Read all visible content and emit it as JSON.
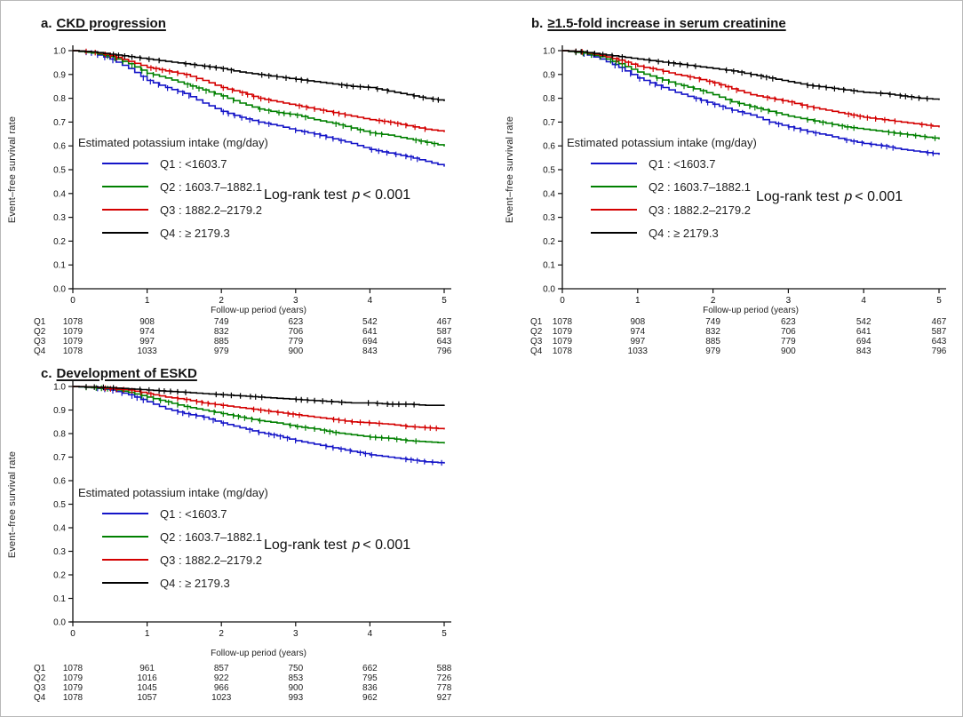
{
  "chart_data": [
    {
      "type": "line",
      "panel_label": "a.",
      "title": "CKD progression",
      "ylabel": "Event–free survival rate",
      "xlabel": "Follow-up period (years)",
      "xlim": [
        0,
        5
      ],
      "ylim": [
        0.0,
        1.0
      ],
      "x_ticks": [
        "0",
        "1",
        "2",
        "3",
        "4",
        "5"
      ],
      "y_ticks": [
        "1.0",
        "0.9",
        "0.8",
        "0.7",
        "0.6",
        "0.5",
        "0.4",
        "0.3",
        "0.2",
        "0.1",
        "0.0"
      ],
      "grid": false,
      "legend_title": "Estimated potassium intake (mg/day)",
      "logrank": {
        "prefix": "Log-rank test",
        "p_symbol": "p",
        "comparison": "< 0.001"
      },
      "x": [
        0,
        0.25,
        0.5,
        0.75,
        1,
        1.25,
        1.5,
        1.75,
        2,
        2.25,
        2.5,
        2.75,
        3,
        3.25,
        3.5,
        3.75,
        4,
        4.25,
        4.5,
        4.75,
        5
      ],
      "series": [
        {
          "name": "Q1",
          "label": "<1603.7",
          "color": "#1515c8",
          "values": [
            1.0,
            0.99,
            0.965,
            0.925,
            0.875,
            0.845,
            0.82,
            0.78,
            0.745,
            0.72,
            0.7,
            0.685,
            0.665,
            0.65,
            0.63,
            0.61,
            0.585,
            0.57,
            0.555,
            0.535,
            0.515
          ]
        },
        {
          "name": "Q2",
          "label": "1603.7–1882.1",
          "color": "#008000",
          "values": [
            1.0,
            0.99,
            0.975,
            0.945,
            0.905,
            0.885,
            0.86,
            0.835,
            0.81,
            0.78,
            0.755,
            0.74,
            0.73,
            0.71,
            0.695,
            0.675,
            0.655,
            0.645,
            0.63,
            0.615,
            0.6
          ]
        },
        {
          "name": "Q3",
          "label": "1882.2–2179.2",
          "color": "#d40000",
          "values": [
            1.0,
            0.995,
            0.98,
            0.955,
            0.93,
            0.915,
            0.9,
            0.875,
            0.845,
            0.825,
            0.8,
            0.785,
            0.77,
            0.755,
            0.74,
            0.725,
            0.71,
            0.7,
            0.685,
            0.67,
            0.66
          ]
        },
        {
          "name": "Q4",
          "label": "≥ 2179.3",
          "color": "#000000",
          "values": [
            1.0,
            0.995,
            0.985,
            0.975,
            0.965,
            0.955,
            0.945,
            0.935,
            0.925,
            0.91,
            0.9,
            0.89,
            0.88,
            0.87,
            0.86,
            0.85,
            0.845,
            0.83,
            0.815,
            0.8,
            0.79
          ]
        }
      ],
      "number_at_risk": {
        "columns": [
          0,
          1,
          2,
          3,
          4,
          5
        ],
        "rows": [
          {
            "name": "Q1",
            "counts": [
              1078,
              908,
              749,
              623,
              542,
              467
            ]
          },
          {
            "name": "Q2",
            "counts": [
              1079,
              974,
              832,
              706,
              641,
              587
            ]
          },
          {
            "name": "Q3",
            "counts": [
              1079,
              997,
              885,
              779,
              694,
              643
            ]
          },
          {
            "name": "Q4",
            "counts": [
              1078,
              1033,
              979,
              900,
              843,
              796
            ]
          }
        ]
      }
    },
    {
      "type": "line",
      "panel_label": "b.",
      "title": "≥1.5-fold increase in serum creatinine",
      "ylabel": "Event–free survival rate",
      "xlabel": "Follow-up period (years)",
      "xlim": [
        0,
        5
      ],
      "ylim": [
        0.0,
        1.0
      ],
      "x_ticks": [
        "0",
        "1",
        "2",
        "3",
        "4",
        "5"
      ],
      "y_ticks": [
        "1.0",
        "0.9",
        "0.8",
        "0.7",
        "0.6",
        "0.5",
        "0.4",
        "0.3",
        "0.2",
        "0.1",
        "0.0"
      ],
      "grid": false,
      "legend_title": "Estimated potassium intake (mg/day)",
      "logrank": {
        "prefix": "Log-rank test",
        "p_symbol": "p",
        "comparison": "< 0.001"
      },
      "x": [
        0,
        0.25,
        0.5,
        0.75,
        1,
        1.25,
        1.5,
        1.75,
        2,
        2.25,
        2.5,
        2.75,
        3,
        3.25,
        3.5,
        3.75,
        4,
        4.25,
        4.5,
        4.75,
        5
      ],
      "series": [
        {
          "name": "Q1",
          "label": "<1603.7",
          "color": "#1515c8",
          "values": [
            1.0,
            0.99,
            0.965,
            0.93,
            0.885,
            0.855,
            0.825,
            0.8,
            0.775,
            0.75,
            0.73,
            0.7,
            0.68,
            0.66,
            0.645,
            0.625,
            0.61,
            0.6,
            0.585,
            0.575,
            0.565
          ]
        },
        {
          "name": "Q2",
          "label": "1603.7–1882.1",
          "color": "#008000",
          "values": [
            1.0,
            0.99,
            0.975,
            0.945,
            0.91,
            0.885,
            0.86,
            0.84,
            0.815,
            0.785,
            0.765,
            0.745,
            0.725,
            0.71,
            0.695,
            0.68,
            0.67,
            0.66,
            0.65,
            0.64,
            0.63
          ]
        },
        {
          "name": "Q3",
          "label": "1882.2–2179.2",
          "color": "#d40000",
          "values": [
            1.0,
            0.995,
            0.98,
            0.96,
            0.935,
            0.92,
            0.9,
            0.885,
            0.865,
            0.84,
            0.815,
            0.8,
            0.785,
            0.765,
            0.75,
            0.735,
            0.72,
            0.71,
            0.7,
            0.69,
            0.68
          ]
        },
        {
          "name": "Q4",
          "label": "≥ 2179.3",
          "color": "#000000",
          "values": [
            1.0,
            0.995,
            0.985,
            0.975,
            0.965,
            0.955,
            0.945,
            0.935,
            0.925,
            0.915,
            0.9,
            0.885,
            0.87,
            0.855,
            0.845,
            0.835,
            0.825,
            0.82,
            0.81,
            0.8,
            0.795
          ]
        }
      ],
      "number_at_risk": {
        "columns": [
          0,
          1,
          2,
          3,
          4,
          5
        ],
        "rows": [
          {
            "name": "Q1",
            "counts": [
              1078,
              908,
              749,
              623,
              542,
              467
            ]
          },
          {
            "name": "Q2",
            "counts": [
              1079,
              974,
              832,
              706,
              641,
              587
            ]
          },
          {
            "name": "Q3",
            "counts": [
              1079,
              997,
              885,
              779,
              694,
              643
            ]
          },
          {
            "name": "Q4",
            "counts": [
              1078,
              1033,
              979,
              900,
              843,
              796
            ]
          }
        ]
      }
    },
    {
      "type": "line",
      "panel_label": "c.",
      "title": "Development of ESKD",
      "ylabel": "Event–free survival rate",
      "xlabel": "Follow-up period (years)",
      "xlim": [
        0,
        5
      ],
      "ylim": [
        0.0,
        1.0
      ],
      "x_ticks": [
        "0",
        "1",
        "2",
        "3",
        "4",
        "5"
      ],
      "y_ticks": [
        "1.0",
        "0.9",
        "0.8",
        "0.7",
        "0.6",
        "0.5",
        "0.4",
        "0.3",
        "0.2",
        "0.1",
        "0.0"
      ],
      "grid": false,
      "legend_title": "Estimated potassium intake (mg/day)",
      "logrank": {
        "prefix": "Log-rank test",
        "p_symbol": "p",
        "comparison": "< 0.001"
      },
      "x": [
        0,
        0.25,
        0.5,
        0.75,
        1,
        1.25,
        1.5,
        1.75,
        2,
        2.25,
        2.5,
        2.75,
        3,
        3.25,
        3.5,
        3.75,
        4,
        4.25,
        4.5,
        4.75,
        5
      ],
      "series": [
        {
          "name": "Q1",
          "label": "<1603.7",
          "color": "#1515c8",
          "values": [
            1.0,
            0.995,
            0.985,
            0.965,
            0.935,
            0.905,
            0.885,
            0.87,
            0.845,
            0.825,
            0.805,
            0.79,
            0.77,
            0.755,
            0.74,
            0.725,
            0.71,
            0.7,
            0.69,
            0.68,
            0.675
          ]
        },
        {
          "name": "Q2",
          "label": "1603.7–1882.1",
          "color": "#008000",
          "values": [
            1.0,
            0.995,
            0.99,
            0.975,
            0.955,
            0.935,
            0.915,
            0.9,
            0.885,
            0.87,
            0.855,
            0.845,
            0.83,
            0.82,
            0.805,
            0.795,
            0.785,
            0.78,
            0.77,
            0.765,
            0.76
          ]
        },
        {
          "name": "Q3",
          "label": "1882.2–2179.2",
          "color": "#d40000",
          "values": [
            1.0,
            0.998,
            0.99,
            0.985,
            0.97,
            0.955,
            0.945,
            0.93,
            0.92,
            0.91,
            0.9,
            0.89,
            0.88,
            0.87,
            0.86,
            0.85,
            0.845,
            0.84,
            0.83,
            0.825,
            0.82
          ]
        },
        {
          "name": "Q4",
          "label": "≥ 2179.3",
          "color": "#000000",
          "values": [
            1.0,
            0.998,
            0.995,
            0.99,
            0.985,
            0.98,
            0.975,
            0.97,
            0.965,
            0.96,
            0.955,
            0.95,
            0.945,
            0.94,
            0.935,
            0.93,
            0.93,
            0.925,
            0.925,
            0.92,
            0.92
          ]
        }
      ],
      "number_at_risk": {
        "columns": [
          0,
          1,
          2,
          3,
          4,
          5
        ],
        "rows": [
          {
            "name": "Q1",
            "counts": [
              1078,
              961,
              857,
              750,
              662,
              588
            ]
          },
          {
            "name": "Q2",
            "counts": [
              1079,
              1016,
              922,
              853,
              795,
              726
            ]
          },
          {
            "name": "Q3",
            "counts": [
              1079,
              1045,
              966,
              900,
              836,
              778
            ]
          },
          {
            "name": "Q4",
            "counts": [
              1078,
              1057,
              1023,
              993,
              962,
              927
            ]
          }
        ]
      }
    }
  ]
}
